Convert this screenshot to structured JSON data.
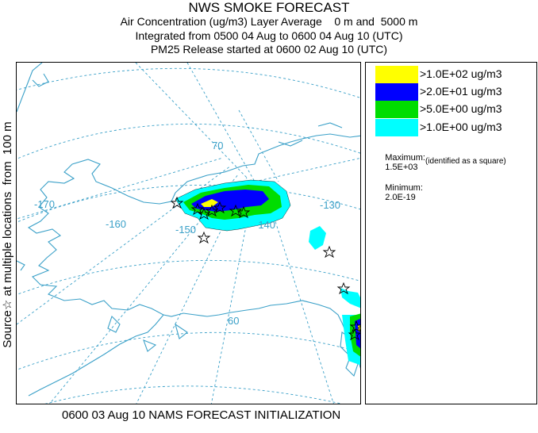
{
  "title": {
    "line1": "NWS SMOKE FORECAST",
    "line2": "Air Concentration (ug/m3) Layer Average    0 m and  5000 m",
    "line3": "Integrated from 0500 04 Aug to 0600 04 Aug 10 (UTC)",
    "line4": "PM25 Release started at 0600 02 Aug 10 (UTC)"
  },
  "side_label": "Source☆ at multiple locations  from  100 m",
  "footer": "0600 03 Aug 10 NAMS FORECAST INITIALIZATION",
  "legend": {
    "items": [
      {
        "label": ">1.0E+02 ug/m3",
        "color": "#ffff00"
      },
      {
        "label": ">2.0E+01 ug/m3",
        "color": "#0000ff"
      },
      {
        "label": ">5.0E+00 ug/m3",
        "color": "#00dd00"
      },
      {
        "label": ">1.0E+00 ug/m3",
        "color": "#00ffff"
      }
    ],
    "maximum_label": "Maximum:",
    "maximum_value": "1.5E+03",
    "maximum_note": "(identified as a square)",
    "minimum_label": "Minimum:",
    "minimum_value": "2.0E-19"
  },
  "map": {
    "graticule_labels": [
      "-170",
      "-160",
      "-150",
      "-140",
      "-130",
      "70",
      "60"
    ],
    "line_color": "#3aa0c8"
  }
}
